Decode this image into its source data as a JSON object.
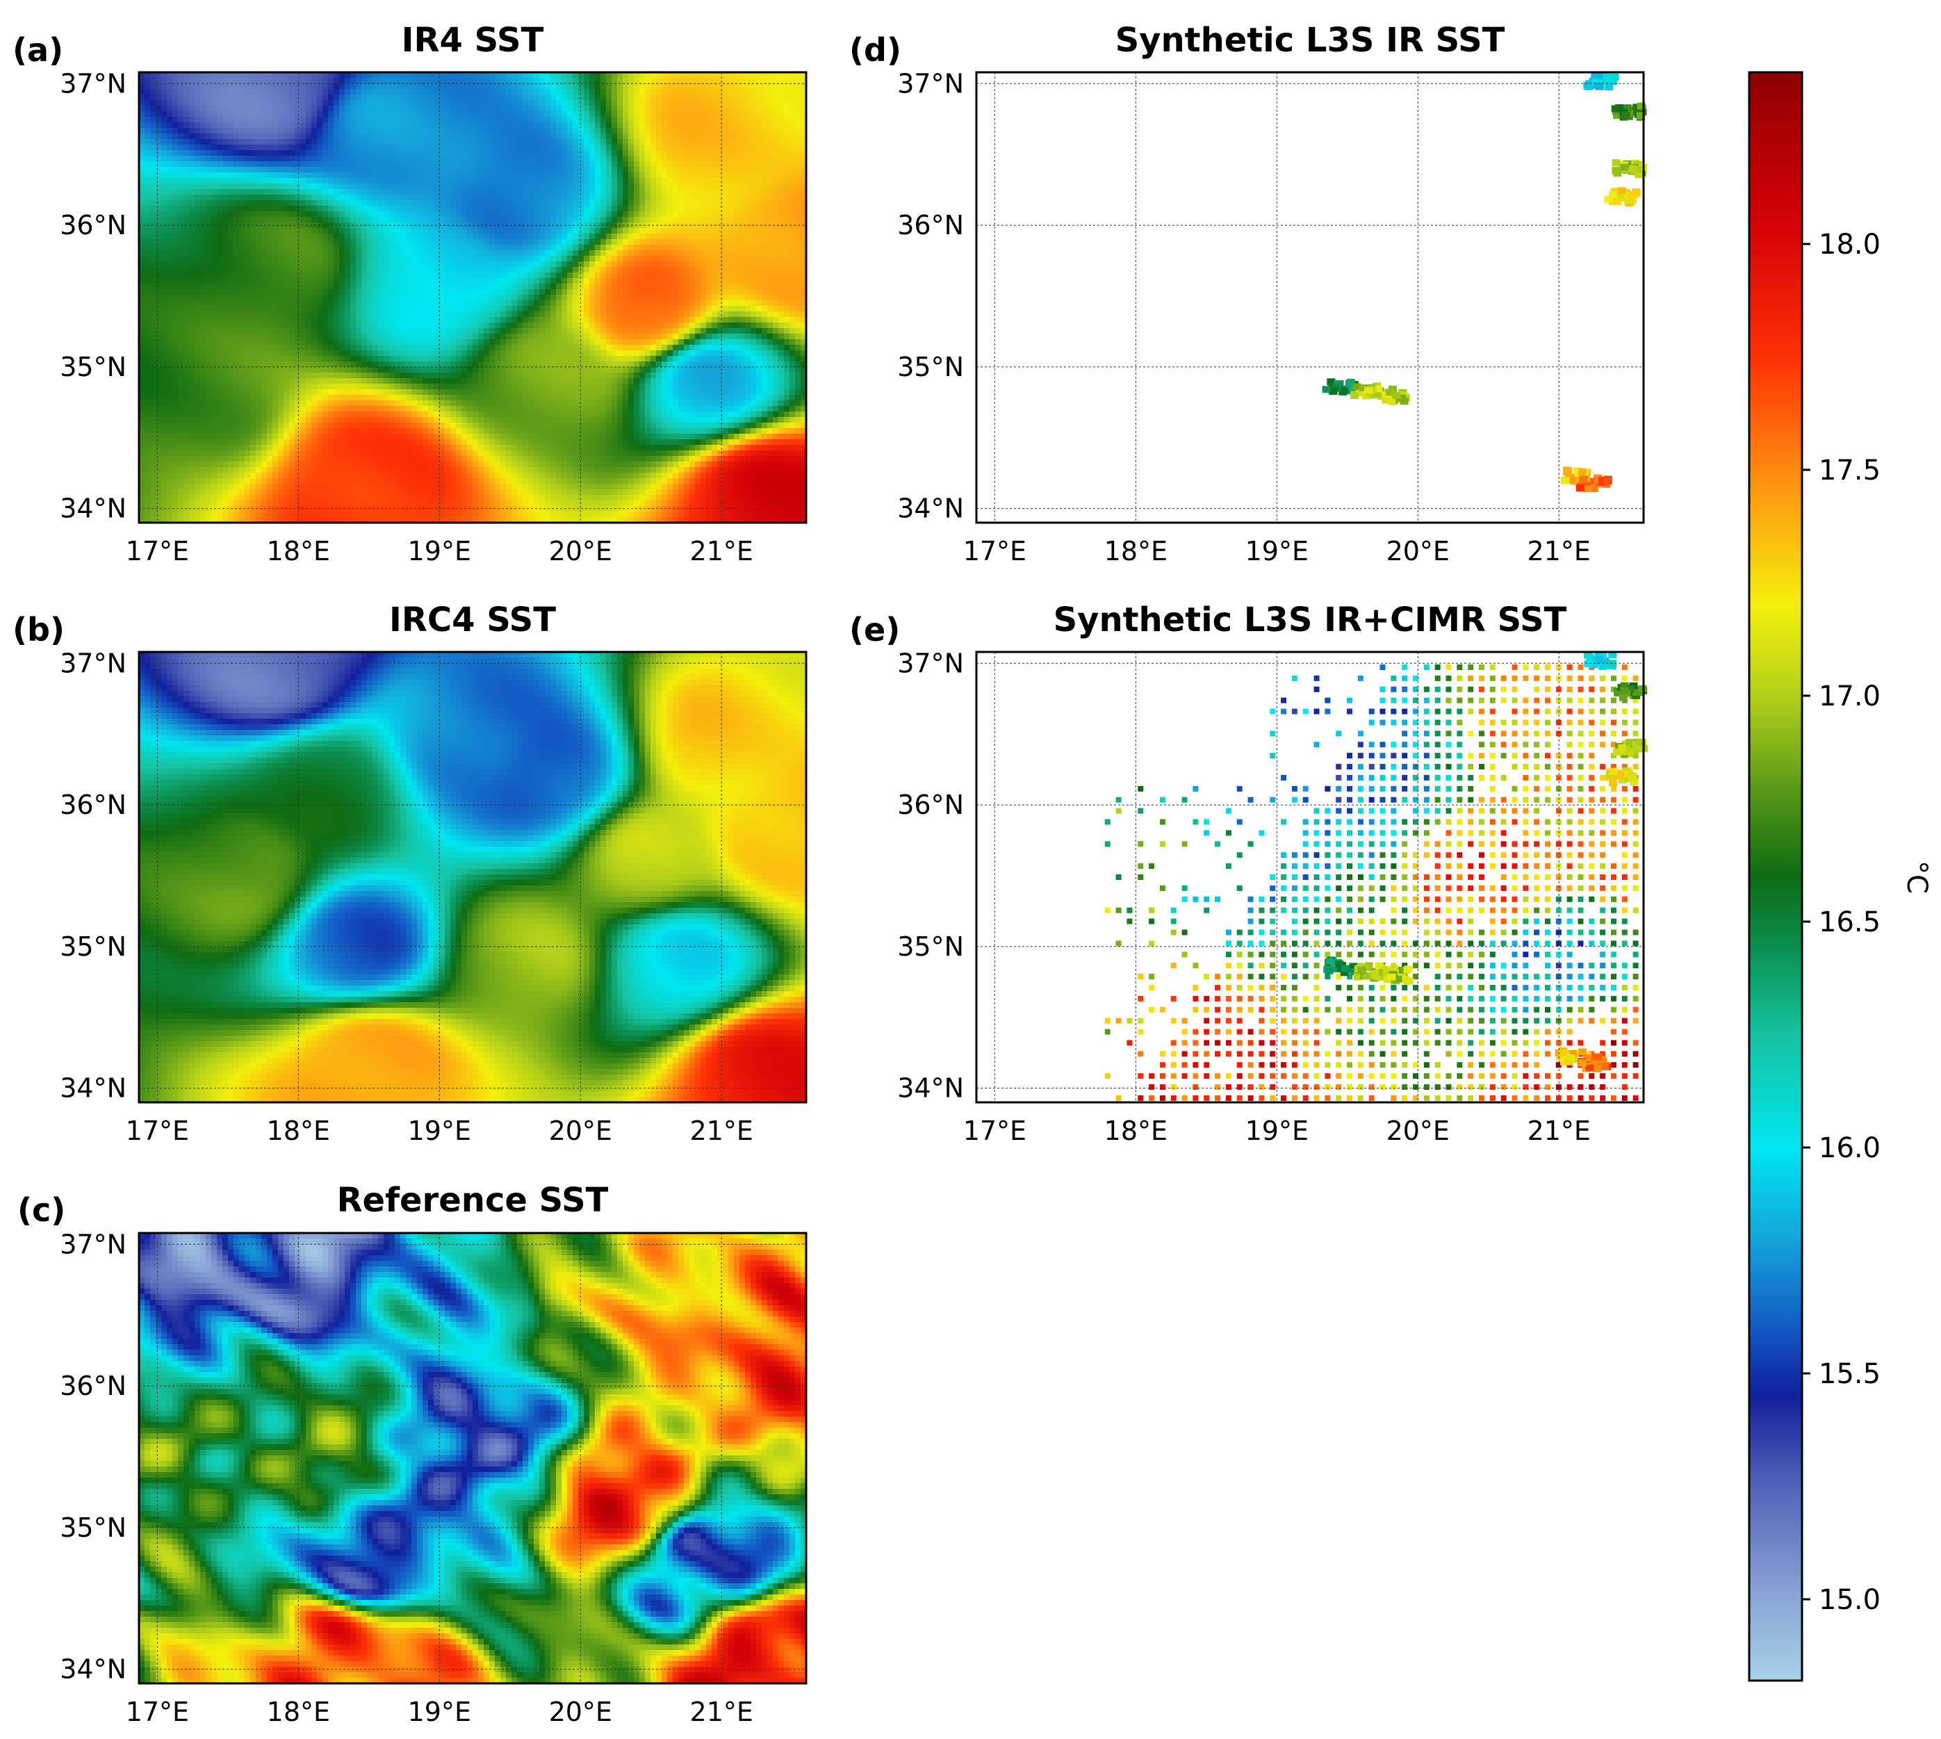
{
  "figure": {
    "colorbar": {
      "label": "°C",
      "ticks": [
        "15.0",
        "15.5",
        "16.0",
        "16.5",
        "17.0",
        "17.5",
        "18.0"
      ],
      "tick_values": [
        15.0,
        15.5,
        16.0,
        16.5,
        17.0,
        17.5,
        18.0
      ],
      "vmin": 14.82,
      "vmax": 18.38,
      "stops": [
        {
          "v": 14.82,
          "color": "#a6d2e8"
        },
        {
          "v": 15.0,
          "color": "#8aa6d6"
        },
        {
          "v": 15.25,
          "color": "#5264b8"
        },
        {
          "v": 15.45,
          "color": "#111f9b"
        },
        {
          "v": 15.6,
          "color": "#1259c4"
        },
        {
          "v": 15.8,
          "color": "#14a6da"
        },
        {
          "v": 16.0,
          "color": "#00e6f0"
        },
        {
          "v": 16.25,
          "color": "#16c2a0"
        },
        {
          "v": 16.45,
          "color": "#0b8d4e"
        },
        {
          "v": 16.6,
          "color": "#0d6b12"
        },
        {
          "v": 16.8,
          "color": "#5c9b18"
        },
        {
          "v": 17.0,
          "color": "#b4d11a"
        },
        {
          "v": 17.2,
          "color": "#f4ef0b"
        },
        {
          "v": 17.45,
          "color": "#ff9b12"
        },
        {
          "v": 17.75,
          "color": "#fd3006"
        },
        {
          "v": 18.05,
          "color": "#d30007"
        },
        {
          "v": 18.38,
          "color": "#8e0000"
        }
      ]
    }
  },
  "chart_data": [
    {
      "id": "a",
      "panel_label": "(a)",
      "title": "IR4 SST",
      "type": "heatmap",
      "x_ticks": [
        "17°E",
        "18°E",
        "19°E",
        "20°E",
        "21°E"
      ],
      "y_ticks": [
        "37°N",
        "36°N",
        "35°N",
        "34°N"
      ],
      "lon_range": [
        16.87,
        21.6
      ],
      "lat_range": [
        33.9,
        37.08
      ],
      "unit": "°C",
      "field_style": "smooth",
      "features": [
        {
          "lon": 17.9,
          "lat": 37.0,
          "sst": 15.2
        },
        {
          "lon": 18.6,
          "lat": 36.7,
          "sst": 15.7
        },
        {
          "lon": 19.6,
          "lat": 36.2,
          "sst": 15.7
        },
        {
          "lon": 19.0,
          "lat": 35.6,
          "sst": 16.0
        },
        {
          "lon": 17.8,
          "lat": 35.7,
          "sst": 16.7
        },
        {
          "lon": 17.3,
          "lat": 34.8,
          "sst": 16.7
        },
        {
          "lon": 18.5,
          "lat": 34.2,
          "sst": 17.8
        },
        {
          "lon": 20.5,
          "lat": 35.4,
          "sst": 17.6
        },
        {
          "lon": 21.0,
          "lat": 36.6,
          "sst": 17.3
        },
        {
          "lon": 21.5,
          "lat": 35.8,
          "sst": 17.5
        },
        {
          "lon": 21.3,
          "lat": 34.1,
          "sst": 18.0
        },
        {
          "lon": 20.9,
          "lat": 34.9,
          "sst": 15.9
        },
        {
          "lon": 19.8,
          "lat": 34.9,
          "sst": 16.8
        }
      ]
    },
    {
      "id": "b",
      "panel_label": "(b)",
      "title": "IRC4 SST",
      "type": "heatmap",
      "x_ticks": [
        "17°E",
        "18°E",
        "19°E",
        "20°E",
        "21°E"
      ],
      "y_ticks": [
        "37°N",
        "36°N",
        "35°N",
        "34°N"
      ],
      "lon_range": [
        16.87,
        21.6
      ],
      "lat_range": [
        33.9,
        37.08
      ],
      "unit": "°C",
      "field_style": "smooth",
      "features": [
        {
          "lon": 17.9,
          "lat": 37.0,
          "sst": 15.2
        },
        {
          "lon": 19.2,
          "lat": 36.5,
          "sst": 15.7
        },
        {
          "lon": 19.8,
          "lat": 36.2,
          "sst": 15.6
        },
        {
          "lon": 18.4,
          "lat": 35.0,
          "sst": 15.6
        },
        {
          "lon": 17.6,
          "lat": 35.5,
          "sst": 16.8
        },
        {
          "lon": 18.2,
          "lat": 36.1,
          "sst": 16.5
        },
        {
          "lon": 18.5,
          "lat": 34.2,
          "sst": 17.5
        },
        {
          "lon": 21.0,
          "lat": 36.4,
          "sst": 17.3
        },
        {
          "lon": 21.4,
          "lat": 35.8,
          "sst": 17.4
        },
        {
          "lon": 21.3,
          "lat": 34.1,
          "sst": 17.9
        },
        {
          "lon": 20.5,
          "lat": 35.6,
          "sst": 17.0
        },
        {
          "lon": 19.6,
          "lat": 34.9,
          "sst": 16.9
        },
        {
          "lon": 20.7,
          "lat": 34.9,
          "sst": 16.0
        }
      ]
    },
    {
      "id": "c",
      "panel_label": "(c)",
      "title": "Reference SST",
      "type": "heatmap",
      "x_ticks": [
        "17°E",
        "18°E",
        "19°E",
        "20°E",
        "21°E"
      ],
      "y_ticks": [
        "37°N",
        "36°N",
        "35°N",
        "34°N"
      ],
      "lon_range": [
        16.87,
        21.6
      ],
      "lat_range": [
        33.9,
        37.08
      ],
      "unit": "°C",
      "field_style": "filamented",
      "features": [
        {
          "lon": 17.9,
          "lat": 37.0,
          "sst": 15.2
        },
        {
          "lon": 19.3,
          "lat": 36.5,
          "sst": 16.0
        },
        {
          "lon": 19.4,
          "lat": 35.7,
          "sst": 15.6
        },
        {
          "lon": 18.5,
          "lat": 34.8,
          "sst": 15.5
        },
        {
          "lon": 17.9,
          "lat": 35.5,
          "sst": 16.7
        },
        {
          "lon": 18.4,
          "lat": 34.1,
          "sst": 17.7
        },
        {
          "lon": 20.4,
          "lat": 35.2,
          "sst": 17.8
        },
        {
          "lon": 21.2,
          "lat": 36.2,
          "sst": 17.6
        },
        {
          "lon": 21.4,
          "lat": 34.1,
          "sst": 18.0
        },
        {
          "lon": 20.9,
          "lat": 34.8,
          "sst": 15.5
        },
        {
          "lon": 20.1,
          "lat": 36.6,
          "sst": 17.2
        }
      ]
    },
    {
      "id": "d",
      "panel_label": "(d)",
      "title": "Synthetic L3S IR SST",
      "type": "scatter",
      "x_ticks": [
        "17°E",
        "18°E",
        "19°E",
        "20°E",
        "21°E"
      ],
      "y_ticks": [
        "37°N",
        "36°N",
        "35°N",
        "34°N"
      ],
      "lon_range": [
        16.87,
        21.6
      ],
      "lat_range": [
        33.9,
        37.08
      ],
      "unit": "°C",
      "clusters": [
        {
          "lon": 19.45,
          "lat": 34.86,
          "sst": 16.5
        },
        {
          "lon": 19.65,
          "lat": 34.82,
          "sst": 17.0
        },
        {
          "lon": 19.85,
          "lat": 34.8,
          "sst": 17.0
        },
        {
          "lon": 21.1,
          "lat": 34.23,
          "sst": 17.3
        },
        {
          "lon": 21.25,
          "lat": 34.18,
          "sst": 17.6
        },
        {
          "lon": 21.3,
          "lat": 37.02,
          "sst": 16.0
        },
        {
          "lon": 21.5,
          "lat": 36.8,
          "sst": 16.7
        },
        {
          "lon": 21.5,
          "lat": 36.4,
          "sst": 17.0
        },
        {
          "lon": 21.45,
          "lat": 36.2,
          "sst": 17.2
        }
      ]
    },
    {
      "id": "e",
      "panel_label": "(e)",
      "title": "Synthetic L3S IR+CIMR SST",
      "type": "scatter",
      "x_ticks": [
        "17°E",
        "18°E",
        "19°E",
        "20°E",
        "21°E"
      ],
      "y_ticks": [
        "37°N",
        "36°N",
        "35°N",
        "34°N"
      ],
      "lon_range": [
        16.87,
        21.6
      ],
      "lat_range": [
        33.9,
        37.08
      ],
      "unit": "°C",
      "cimr_grid": {
        "lon_start": 17.8,
        "lon_end": 21.6,
        "lat_start": 33.93,
        "lat_end": 37.05,
        "spacing_deg": 0.078
      },
      "clusters": [
        {
          "lon": 19.45,
          "lat": 34.86,
          "sst": 16.5
        },
        {
          "lon": 19.65,
          "lat": 34.82,
          "sst": 17.0
        },
        {
          "lon": 19.85,
          "lat": 34.8,
          "sst": 17.0
        },
        {
          "lon": 21.1,
          "lat": 34.23,
          "sst": 17.3
        },
        {
          "lon": 21.25,
          "lat": 34.18,
          "sst": 17.6
        },
        {
          "lon": 21.3,
          "lat": 37.02,
          "sst": 16.0
        },
        {
          "lon": 21.5,
          "lat": 36.8,
          "sst": 16.7
        },
        {
          "lon": 21.5,
          "lat": 36.4,
          "sst": 17.0
        },
        {
          "lon": 21.45,
          "lat": 36.2,
          "sst": 17.2
        }
      ]
    }
  ]
}
